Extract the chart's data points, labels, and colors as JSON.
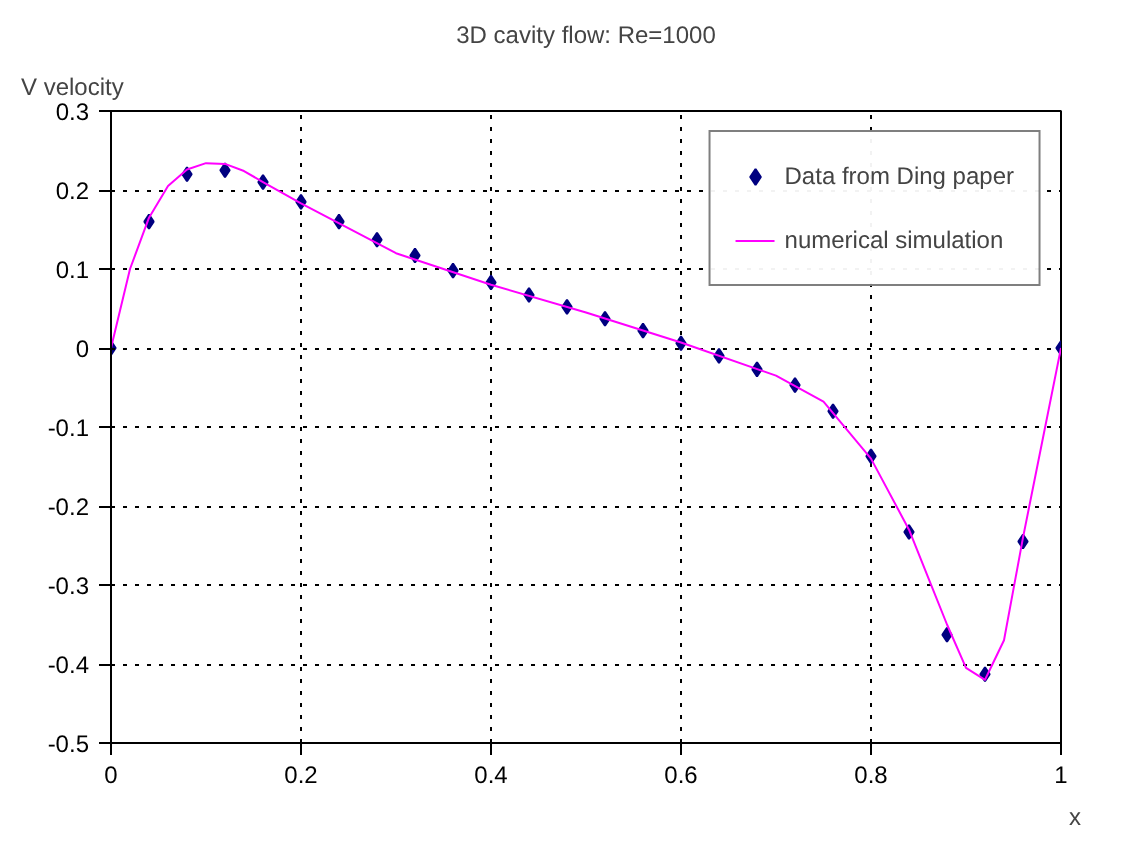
{
  "chart_data": {
    "type": "scatter",
    "title": "3D cavity flow: Re=1000",
    "xlabel": "x",
    "ylabel": "V velocity",
    "xlim": [
      0,
      1
    ],
    "ylim": [
      -0.5,
      0.3
    ],
    "xticks": [
      0,
      0.2,
      0.4,
      0.6,
      0.8,
      1
    ],
    "yticks": [
      -0.5,
      -0.4,
      -0.3,
      -0.2,
      -0.1,
      0,
      0.1,
      0.2,
      0.3
    ],
    "grid": true,
    "legend": "top right",
    "series": [
      {
        "name": "Data from Ding paper",
        "marker": "diamond",
        "color": "#000080",
        "x": [
          0,
          0.04,
          0.08,
          0.12,
          0.16,
          0.2,
          0.24,
          0.28,
          0.32,
          0.36,
          0.4,
          0.44,
          0.48,
          0.52,
          0.56,
          0.6,
          0.64,
          0.68,
          0.72,
          0.76,
          0.8,
          0.84,
          0.88,
          0.92,
          0.96,
          1.0
        ],
        "values": [
          0,
          0.16,
          0.22,
          0.225,
          0.21,
          0.185,
          0.16,
          0.137,
          0.117,
          0.098,
          0.083,
          0.067,
          0.052,
          0.037,
          0.022,
          0.006,
          -0.01,
          -0.027,
          -0.047,
          -0.08,
          -0.137,
          -0.233,
          -0.363,
          -0.413,
          -0.245,
          0
        ]
      },
      {
        "name": "numerical simulation",
        "type": "line",
        "color": "#ff00ff",
        "x": [
          0,
          0.02,
          0.04,
          0.06,
          0.08,
          0.1,
          0.12,
          0.14,
          0.16,
          0.2,
          0.3,
          0.4,
          0.5,
          0.6,
          0.7,
          0.75,
          0.8,
          0.84,
          0.86,
          0.88,
          0.9,
          0.92,
          0.94,
          0.96,
          0.98,
          1.0
        ],
        "values": [
          0,
          0.1,
          0.165,
          0.205,
          0.226,
          0.234,
          0.233,
          0.224,
          0.21,
          0.183,
          0.12,
          0.08,
          0.045,
          0.007,
          -0.035,
          -0.068,
          -0.14,
          -0.23,
          -0.29,
          -0.35,
          -0.405,
          -0.42,
          -0.37,
          -0.24,
          -0.12,
          0
        ]
      }
    ]
  }
}
